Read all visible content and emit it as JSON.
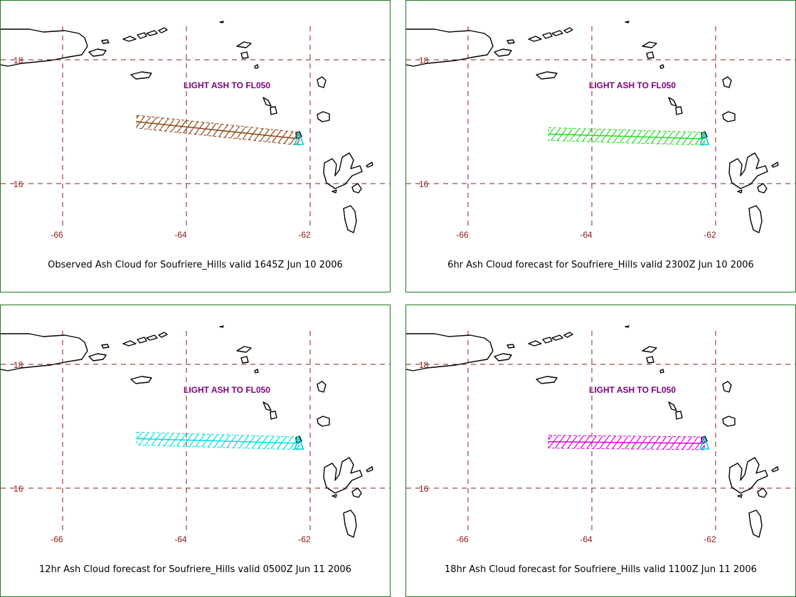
{
  "colors": {
    "panel_border": "#1f7a1f",
    "grid": "#8b1a1a",
    "label": "#800080",
    "coast": "#000000",
    "volcano": "#00d0e0"
  },
  "panels": [
    {
      "caption": "Observed Ash Cloud for Soufriere_Hills valid 1645Z Jun 10 2006",
      "annotation": "LIGHT ASH TO FL050",
      "lat_labels": [
        "18",
        "16"
      ],
      "lon_labels": [
        "-66",
        "-64",
        "-62"
      ],
      "ash_color": "#8b4513",
      "ash_lon_start": -64.8,
      "ash_lat_start": 17.0
    },
    {
      "caption": "6hr Ash Cloud forecast for Soufriere_Hills valid 2300Z Jun 10 2006",
      "annotation": "LIGHT ASH TO FL050",
      "lat_labels": [
        "18",
        "16"
      ],
      "lon_labels": [
        "-66",
        "-64",
        "-62"
      ],
      "ash_color": "#22dd22",
      "ash_lon_start": -64.7,
      "ash_lat_start": 16.8
    },
    {
      "caption": "12hr Ash Cloud forecast for Soufriere_Hills valid 0500Z Jun 11 2006",
      "annotation": "LIGHT ASH TO FL050",
      "lat_labels": [
        "18",
        "16"
      ],
      "lon_labels": [
        "-66",
        "-64",
        "-62"
      ],
      "ash_color": "#00e0e0",
      "ash_lon_start": -64.8,
      "ash_lat_start": 16.8
    },
    {
      "caption": "18hr Ash Cloud forecast for Soufriere_Hills valid 1100Z Jun 11 2006",
      "annotation": "LIGHT ASH TO FL050",
      "lat_labels": [
        "18",
        "16"
      ],
      "lon_labels": [
        "-66",
        "-64",
        "-62"
      ],
      "ash_color": "#dd00dd",
      "ash_lon_start": -64.7,
      "ash_lat_start": 16.75
    }
  ]
}
